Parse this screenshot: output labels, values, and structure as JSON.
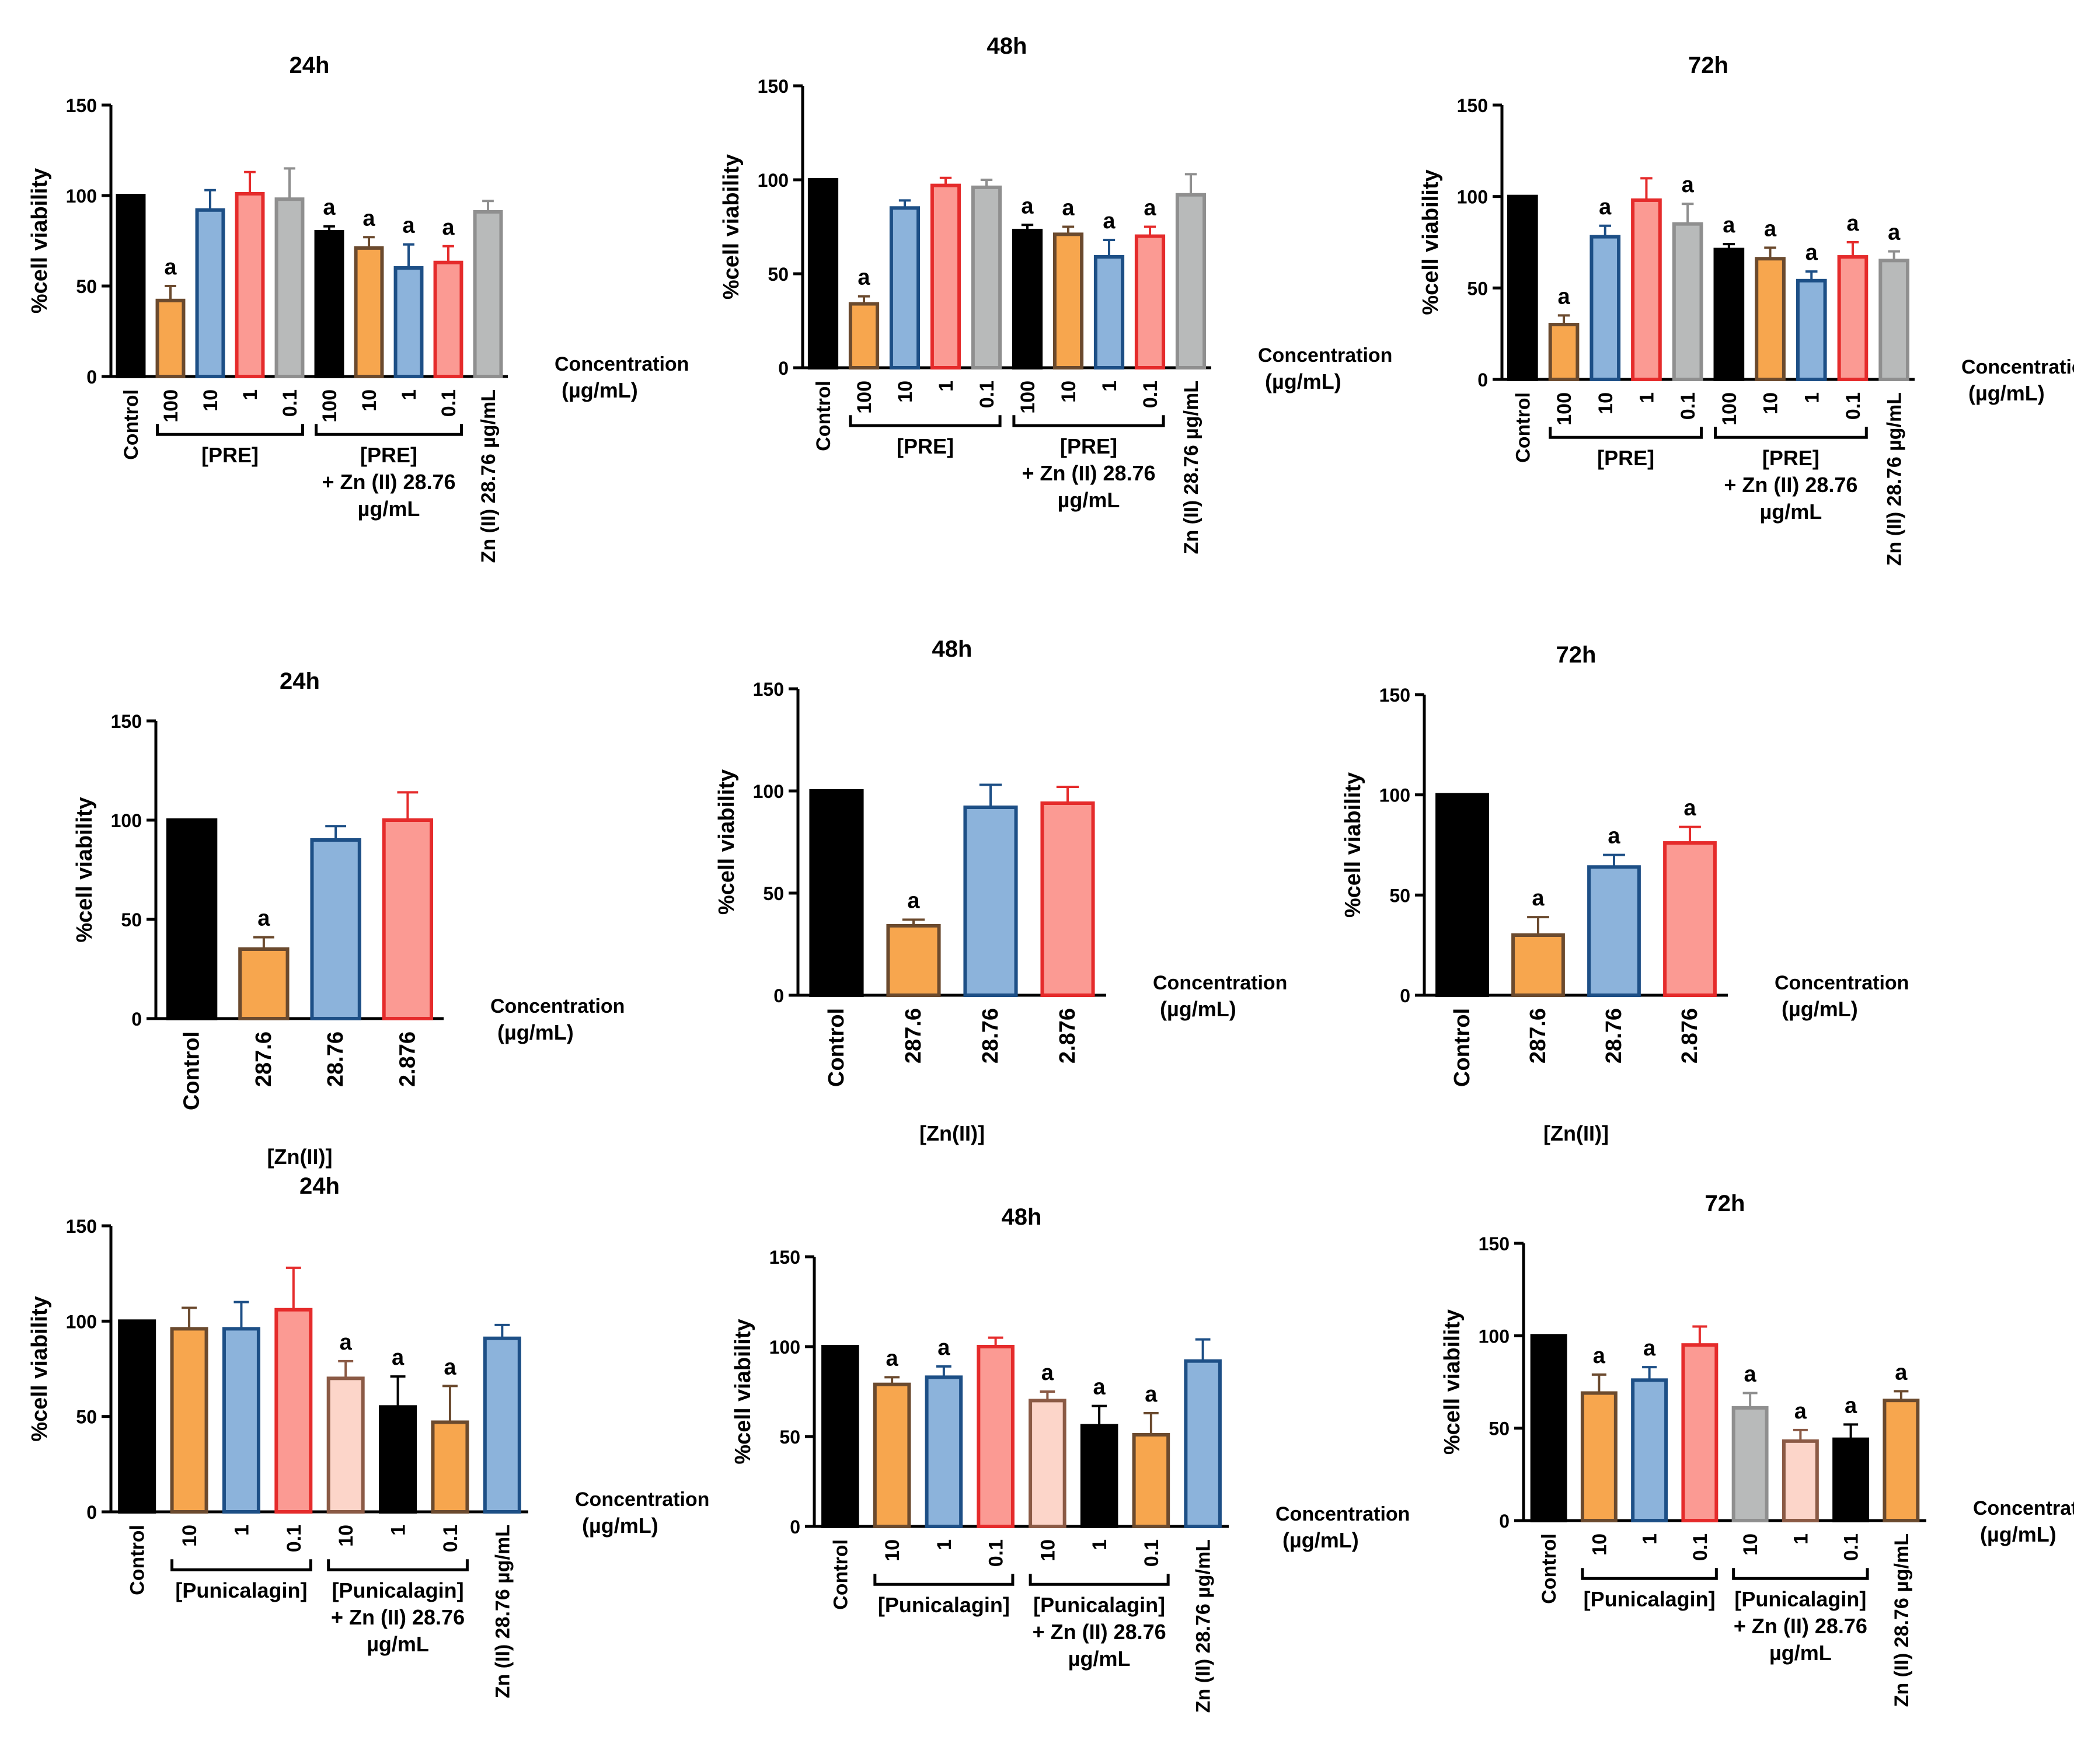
{
  "figure": {
    "colors": {
      "black": "#000000",
      "orange": "#F7A64E",
      "orange_edge": "#6B4A2E",
      "blue": "#8CB3DB",
      "blue_edge": "#1D4F86",
      "red": "#FB9A93",
      "red_edge": "#E52B2B",
      "grey": "#B8BABA",
      "grey_edge": "#8F8F8F",
      "pink": "#FCD5C9",
      "pink_edge": "#8B5A45"
    }
  },
  "chart_data": [
    {
      "type": "bar",
      "title": "24h",
      "ylabel": "%cell viability",
      "ylim": [
        0,
        150
      ],
      "yticks": [
        0,
        50,
        100,
        150
      ],
      "xlabel": [
        "Concentration",
        "(µg/mL)"
      ],
      "categories": [
        "Control",
        "100",
        "10",
        "1",
        "0.1",
        "100",
        "10",
        "1",
        "0.1",
        "Zn (II) 28.76 µg/mL"
      ],
      "values": [
        100,
        42,
        92,
        101,
        98,
        80,
        71,
        60,
        63,
        91
      ],
      "errors": [
        0,
        8,
        11,
        12,
        17,
        3,
        6,
        13,
        9,
        6
      ],
      "colors": [
        "black",
        "orange",
        "blue",
        "red",
        "grey",
        "black",
        "orange",
        "blue",
        "red",
        "grey"
      ],
      "significance": [
        "",
        "a",
        "",
        "",
        "",
        "a",
        "a",
        "a",
        "a",
        ""
      ],
      "groups": [
        {
          "from": 1,
          "to": 4,
          "label": [
            "[PRE]"
          ]
        },
        {
          "from": 5,
          "to": 8,
          "label": [
            "[PRE]",
            "+ Zn (II) 28.76",
            "µg/mL"
          ]
        }
      ]
    },
    {
      "type": "bar",
      "title": "48h",
      "ylabel": "%cell viability",
      "ylim": [
        0,
        150
      ],
      "yticks": [
        0,
        50,
        100,
        150
      ],
      "xlabel": [
        "Concentration",
        "(µg/mL)"
      ],
      "categories": [
        "Control",
        "100",
        "10",
        "1",
        "0.1",
        "100",
        "10",
        "1",
        "0.1",
        "Zn (II) 28.76 µg/mL"
      ],
      "values": [
        100,
        34,
        85,
        97,
        96,
        73,
        71,
        59,
        70,
        92
      ],
      "errors": [
        0,
        4,
        4,
        4,
        4,
        3,
        4,
        9,
        5,
        11
      ],
      "colors": [
        "black",
        "orange",
        "blue",
        "red",
        "grey",
        "black",
        "orange",
        "blue",
        "red",
        "grey"
      ],
      "significance": [
        "",
        "a",
        "",
        "",
        "",
        "a",
        "a",
        "a",
        "a",
        ""
      ],
      "groups": [
        {
          "from": 1,
          "to": 4,
          "label": [
            "[PRE]"
          ]
        },
        {
          "from": 5,
          "to": 8,
          "label": [
            "[PRE]",
            "+ Zn (II) 28.76",
            "µg/mL"
          ]
        }
      ]
    },
    {
      "type": "bar",
      "title": "72h",
      "ylabel": "%cell viability",
      "ylim": [
        0,
        150
      ],
      "yticks": [
        0,
        50,
        100,
        150
      ],
      "xlabel": [
        "Concentration",
        "(µg/mL)"
      ],
      "categories": [
        "Control",
        "100",
        "10",
        "1",
        "0.1",
        "100",
        "10",
        "1",
        "0.1",
        "Zn (II) 28.76 µg/mL"
      ],
      "values": [
        100,
        30,
        78,
        98,
        85,
        71,
        66,
        54,
        67,
        65
      ],
      "errors": [
        0,
        5,
        6,
        12,
        11,
        3,
        6,
        5,
        8,
        5
      ],
      "colors": [
        "black",
        "orange",
        "blue",
        "red",
        "grey",
        "black",
        "orange",
        "blue",
        "red",
        "grey"
      ],
      "significance": [
        "",
        "a",
        "a",
        "",
        "a",
        "a",
        "a",
        "a",
        "a",
        "a"
      ],
      "groups": [
        {
          "from": 1,
          "to": 4,
          "label": [
            "[PRE]"
          ]
        },
        {
          "from": 5,
          "to": 8,
          "label": [
            "[PRE]",
            "+ Zn (II) 28.76",
            "µg/mL"
          ]
        }
      ]
    },
    {
      "type": "bar",
      "title": "24h",
      "ylabel": "%cell viability",
      "ylim": [
        0,
        150
      ],
      "yticks": [
        0,
        50,
        100,
        150
      ],
      "xlabel": [
        "Concentration",
        "(µg/mL)"
      ],
      "categories": [
        "Control",
        "287.6",
        "28.76",
        "2.876"
      ],
      "values": [
        100,
        35,
        90,
        100
      ],
      "errors": [
        0,
        6,
        7,
        14
      ],
      "colors": [
        "black",
        "orange",
        "blue",
        "red"
      ],
      "significance": [
        "",
        "a",
        "",
        ""
      ],
      "groups": [
        {
          "from": 0,
          "to": 3,
          "label": [
            "[Zn(II)]"
          ],
          "bracket": false
        }
      ]
    },
    {
      "type": "bar",
      "title": "48h",
      "ylabel": "%cell viability",
      "ylim": [
        0,
        150
      ],
      "yticks": [
        0,
        50,
        100,
        150
      ],
      "xlabel": [
        "Concentration",
        "(µg/mL)"
      ],
      "categories": [
        "Control",
        "287.6",
        "28.76",
        "2.876"
      ],
      "values": [
        100,
        34,
        92,
        94
      ],
      "errors": [
        0,
        3,
        11,
        8
      ],
      "colors": [
        "black",
        "orange",
        "blue",
        "red"
      ],
      "significance": [
        "",
        "a",
        "",
        ""
      ],
      "groups": [
        {
          "from": 0,
          "to": 3,
          "label": [
            "[Zn(II)]"
          ],
          "bracket": false
        }
      ]
    },
    {
      "type": "bar",
      "title": "72h",
      "ylabel": "%cell viability",
      "ylim": [
        0,
        150
      ],
      "yticks": [
        0,
        50,
        100,
        150
      ],
      "xlabel": [
        "Concentration",
        "(µg/mL)"
      ],
      "categories": [
        "Control",
        "287.6",
        "28.76",
        "2.876"
      ],
      "values": [
        100,
        30,
        64,
        76
      ],
      "errors": [
        0,
        9,
        6,
        8
      ],
      "colors": [
        "black",
        "orange",
        "blue",
        "red"
      ],
      "significance": [
        "",
        "a",
        "a",
        "a"
      ],
      "groups": [
        {
          "from": 0,
          "to": 3,
          "label": [
            "[Zn(II)]"
          ],
          "bracket": false
        }
      ]
    },
    {
      "type": "bar",
      "title": "24h",
      "ylabel": "%cell viability",
      "ylim": [
        0,
        150
      ],
      "yticks": [
        0,
        50,
        100,
        150
      ],
      "xlabel": [
        "Concentration",
        "(µg/mL)"
      ],
      "categories": [
        "Control",
        "10",
        "1",
        "0.1",
        "10",
        "1",
        "0.1",
        "Zn (II) 28.76 µg/mL"
      ],
      "values": [
        100,
        96,
        96,
        106,
        70,
        55,
        47,
        91
      ],
      "errors": [
        0,
        11,
        14,
        22,
        9,
        16,
        19,
        7
      ],
      "colors": [
        "black",
        "orange",
        "blue",
        "red",
        "pink",
        "black",
        "orange",
        "blue"
      ],
      "significance": [
        "",
        "",
        "",
        "",
        "a",
        "a",
        "a",
        ""
      ],
      "groups": [
        {
          "from": 1,
          "to": 3,
          "label": [
            "[Punicalagin]"
          ]
        },
        {
          "from": 4,
          "to": 6,
          "label": [
            "[Punicalagin]",
            "+ Zn (II) 28.76",
            "µg/mL"
          ]
        }
      ]
    },
    {
      "type": "bar",
      "title": "48h",
      "ylabel": "%cell viability",
      "ylim": [
        0,
        150
      ],
      "yticks": [
        0,
        50,
        100,
        150
      ],
      "xlabel": [
        "Concentration",
        "(µg/mL)"
      ],
      "categories": [
        "Control",
        "10",
        "1",
        "0.1",
        "10",
        "1",
        "0.1",
        "Zn (II) 28.76 µg/mL"
      ],
      "values": [
        100,
        79,
        83,
        100,
        70,
        56,
        51,
        92
      ],
      "errors": [
        0,
        4,
        6,
        5,
        5,
        11,
        12,
        12
      ],
      "colors": [
        "black",
        "orange",
        "blue",
        "red",
        "pink",
        "black",
        "orange",
        "blue"
      ],
      "significance": [
        "",
        "a",
        "a",
        "",
        "a",
        "a",
        "a",
        ""
      ],
      "groups": [
        {
          "from": 1,
          "to": 3,
          "label": [
            "[Punicalagin]"
          ]
        },
        {
          "from": 4,
          "to": 6,
          "label": [
            "[Punicalagin]",
            "+ Zn (II) 28.76",
            "µg/mL"
          ]
        }
      ]
    },
    {
      "type": "bar",
      "title": "72h",
      "ylabel": "%cell viability",
      "ylim": [
        0,
        150
      ],
      "yticks": [
        0,
        50,
        100,
        150
      ],
      "xlabel": [
        "Concentration",
        "(µg/mL)"
      ],
      "categories": [
        "Control",
        "10",
        "1",
        "0.1",
        "10",
        "1",
        "0.1",
        "Zn (II) 28.76 µg/mL"
      ],
      "values": [
        100,
        69,
        76,
        95,
        61,
        43,
        44,
        65
      ],
      "errors": [
        0,
        10,
        7,
        10,
        8,
        6,
        8,
        5
      ],
      "colors": [
        "black",
        "orange",
        "blue",
        "red",
        "grey",
        "pink",
        "black",
        "orange"
      ],
      "significance": [
        "",
        "a",
        "a",
        "",
        "a",
        "a",
        "a",
        "a"
      ],
      "groups": [
        {
          "from": 1,
          "to": 3,
          "label": [
            "[Punicalagin]"
          ]
        },
        {
          "from": 4,
          "to": 6,
          "label": [
            "[Punicalagin]",
            "+ Zn (II) 28.76",
            "µg/mL"
          ]
        }
      ]
    }
  ]
}
